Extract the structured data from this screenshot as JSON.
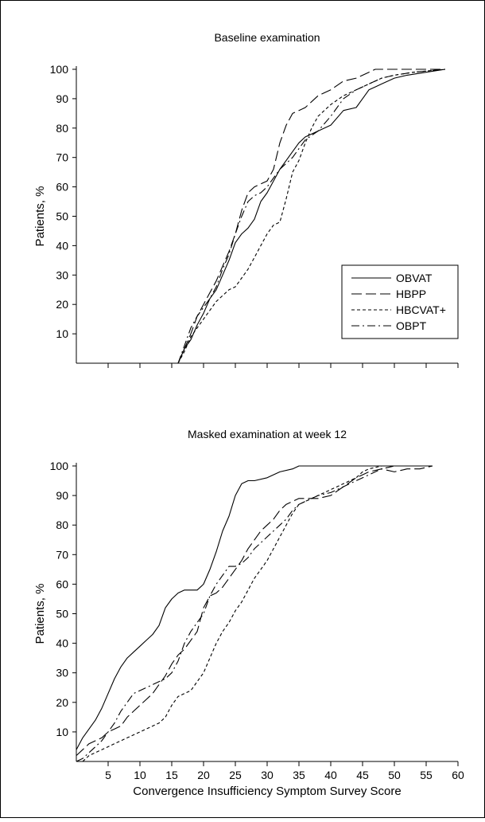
{
  "figure": {
    "xlabel": "Convergence Insufficiency Symptom Survey Score"
  },
  "colors": {
    "line": "#000000",
    "frame": "#000000",
    "background": "#ffffff"
  },
  "chart_data": [
    {
      "type": "line",
      "title": "Baseline examination",
      "xlabel": "",
      "ylabel": "Patients, %",
      "xlim": [
        0,
        60
      ],
      "ylim": [
        0,
        100
      ],
      "yticks": [
        10,
        20,
        30,
        40,
        50,
        60,
        70,
        80,
        90,
        100
      ],
      "xticks": [
        5,
        10,
        15,
        20,
        25,
        30,
        35,
        40,
        45,
        50,
        55,
        60
      ],
      "show_xtick_labels": false,
      "grid": false,
      "legend": "right-middle",
      "series": [
        {
          "name": "OBVAT",
          "dash": "solid",
          "x": [
            16,
            17,
            18,
            19,
            20,
            21,
            22,
            23,
            24,
            25,
            26,
            27,
            28,
            29,
            30,
            31,
            32,
            33,
            34,
            35,
            36,
            38,
            40,
            42,
            44,
            45,
            46,
            47,
            48,
            50,
            52,
            55,
            58
          ],
          "y": [
            0,
            5,
            8,
            13,
            17,
            22,
            25,
            30,
            35,
            41,
            44,
            46,
            49,
            55,
            58,
            62,
            66,
            69,
            72,
            75,
            77,
            79,
            81,
            86,
            87,
            90,
            93,
            94,
            95,
            97,
            98,
            99,
            100
          ]
        },
        {
          "name": "HBPP",
          "dash": "long",
          "x": [
            16,
            17,
            18,
            19,
            20,
            21,
            22,
            23,
            24,
            25,
            26,
            27,
            28,
            29,
            30,
            31,
            32,
            33,
            34,
            35,
            36,
            38,
            40,
            42,
            44,
            46,
            47,
            50,
            55,
            58
          ],
          "y": [
            0,
            5,
            10,
            16,
            20,
            24,
            28,
            33,
            38,
            44,
            52,
            58,
            60,
            61,
            62,
            66,
            75,
            81,
            85,
            86,
            87,
            91,
            93,
            96,
            97,
            99,
            100,
            100,
            100,
            100
          ]
        },
        {
          "name": "HBCVAT+",
          "dash": "short",
          "x": [
            16,
            17,
            18,
            19,
            20,
            21,
            22,
            23,
            24,
            25,
            26,
            27,
            28,
            29,
            30,
            31,
            32,
            33,
            34,
            35,
            36,
            37,
            38,
            40,
            42,
            44,
            46,
            48,
            50,
            53,
            58
          ],
          "y": [
            0,
            4,
            9,
            12,
            15,
            18,
            21,
            23,
            25,
            26,
            29,
            32,
            36,
            40,
            44,
            47,
            48,
            56,
            65,
            69,
            75,
            80,
            84,
            88,
            91,
            93,
            95,
            97,
            98,
            99,
            100
          ]
        },
        {
          "name": "OBPT",
          "dash": "dashdot",
          "x": [
            16,
            17,
            18,
            19,
            20,
            21,
            22,
            23,
            24,
            25,
            26,
            27,
            28,
            29,
            30,
            31,
            32,
            33,
            34,
            35,
            36,
            38,
            40,
            42,
            44,
            46,
            48,
            50,
            53,
            58
          ],
          "y": [
            0,
            6,
            12,
            16,
            19,
            22,
            26,
            32,
            37,
            44,
            50,
            55,
            57,
            58,
            60,
            63,
            66,
            68,
            70,
            73,
            76,
            79,
            84,
            90,
            93,
            95,
            97,
            98,
            99,
            100
          ]
        }
      ]
    },
    {
      "type": "line",
      "title": "Masked examination at week 12",
      "xlabel": "Convergence Insufficiency Symptom Survey Score",
      "ylabel": "Patients, %",
      "xlim": [
        0,
        60
      ],
      "ylim": [
        0,
        100
      ],
      "yticks": [
        10,
        20,
        30,
        40,
        50,
        60,
        70,
        80,
        90,
        100
      ],
      "xticks": [
        5,
        10,
        15,
        20,
        25,
        30,
        35,
        40,
        45,
        50,
        55,
        60
      ],
      "show_xtick_labels": true,
      "grid": false,
      "legend": "none",
      "series": [
        {
          "name": "OBVAT",
          "dash": "solid",
          "x": [
            0,
            1,
            2,
            3,
            4,
            5,
            6,
            7,
            8,
            9,
            10,
            11,
            12,
            13,
            14,
            15,
            16,
            17,
            18,
            19,
            20,
            21,
            22,
            23,
            24,
            25,
            26,
            27,
            28,
            30,
            32,
            34,
            35,
            40,
            45,
            50,
            55,
            56
          ],
          "y": [
            4,
            8,
            11,
            14,
            18,
            23,
            28,
            32,
            35,
            37,
            39,
            41,
            43,
            46,
            52,
            55,
            57,
            58,
            58,
            58,
            60,
            65,
            71,
            78,
            83,
            90,
            94,
            95,
            95,
            96,
            98,
            99,
            100,
            100,
            100,
            100,
            100,
            100
          ]
        },
        {
          "name": "HBPP",
          "dash": "long",
          "x": [
            0,
            1,
            2,
            3,
            4,
            5,
            6,
            7,
            8,
            9,
            10,
            11,
            12,
            13,
            14,
            15,
            16,
            17,
            18,
            19,
            20,
            21,
            22,
            23,
            24,
            25,
            26,
            27,
            28,
            29,
            30,
            31,
            32,
            33,
            34,
            35,
            36,
            38,
            40,
            42,
            44,
            46,
            48,
            50,
            52,
            54,
            56
          ],
          "y": [
            2,
            4,
            6,
            7,
            8,
            10,
            11,
            12,
            15,
            17,
            19,
            21,
            23,
            26,
            29,
            33,
            36,
            38,
            41,
            44,
            52,
            56,
            57,
            59,
            62,
            65,
            68,
            72,
            75,
            78,
            80,
            82,
            85,
            87,
            88,
            89,
            89,
            89,
            90,
            93,
            96,
            98,
            99,
            98,
            99,
            99,
            100
          ]
        },
        {
          "name": "HBCVAT+",
          "dash": "short",
          "x": [
            1,
            2,
            3,
            4,
            5,
            6,
            7,
            8,
            9,
            10,
            11,
            12,
            13,
            14,
            15,
            16,
            17,
            18,
            19,
            20,
            21,
            22,
            23,
            24,
            25,
            26,
            27,
            28,
            29,
            30,
            31,
            32,
            33,
            34,
            35,
            36,
            38,
            40,
            42,
            44,
            45,
            46,
            48,
            50,
            56
          ],
          "y": [
            0,
            2,
            3,
            4,
            5,
            6,
            7,
            8,
            9,
            10,
            11,
            12,
            13,
            15,
            19,
            22,
            23,
            24,
            27,
            30,
            35,
            40,
            44,
            47,
            51,
            54,
            58,
            62,
            65,
            68,
            72,
            76,
            80,
            84,
            87,
            88,
            90,
            92,
            94,
            96,
            98,
            99,
            100,
            100,
            100
          ]
        },
        {
          "name": "OBPT",
          "dash": "dashdot",
          "x": [
            0,
            1,
            2,
            3,
            4,
            5,
            6,
            7,
            8,
            9,
            10,
            11,
            12,
            13,
            14,
            15,
            16,
            17,
            18,
            19,
            20,
            21,
            22,
            23,
            24,
            25,
            26,
            27,
            28,
            29,
            30,
            31,
            32,
            33,
            34,
            35,
            36,
            38,
            40,
            42,
            44,
            46,
            48,
            50,
            56
          ],
          "y": [
            0,
            1,
            3,
            5,
            7,
            10,
            13,
            17,
            20,
            23,
            24,
            25,
            26,
            27,
            28,
            30,
            34,
            40,
            44,
            47,
            50,
            56,
            60,
            63,
            66,
            66,
            67,
            69,
            72,
            74,
            76,
            78,
            80,
            82,
            85,
            87,
            88,
            90,
            91,
            93,
            95,
            97,
            99,
            100,
            100
          ]
        }
      ]
    }
  ]
}
